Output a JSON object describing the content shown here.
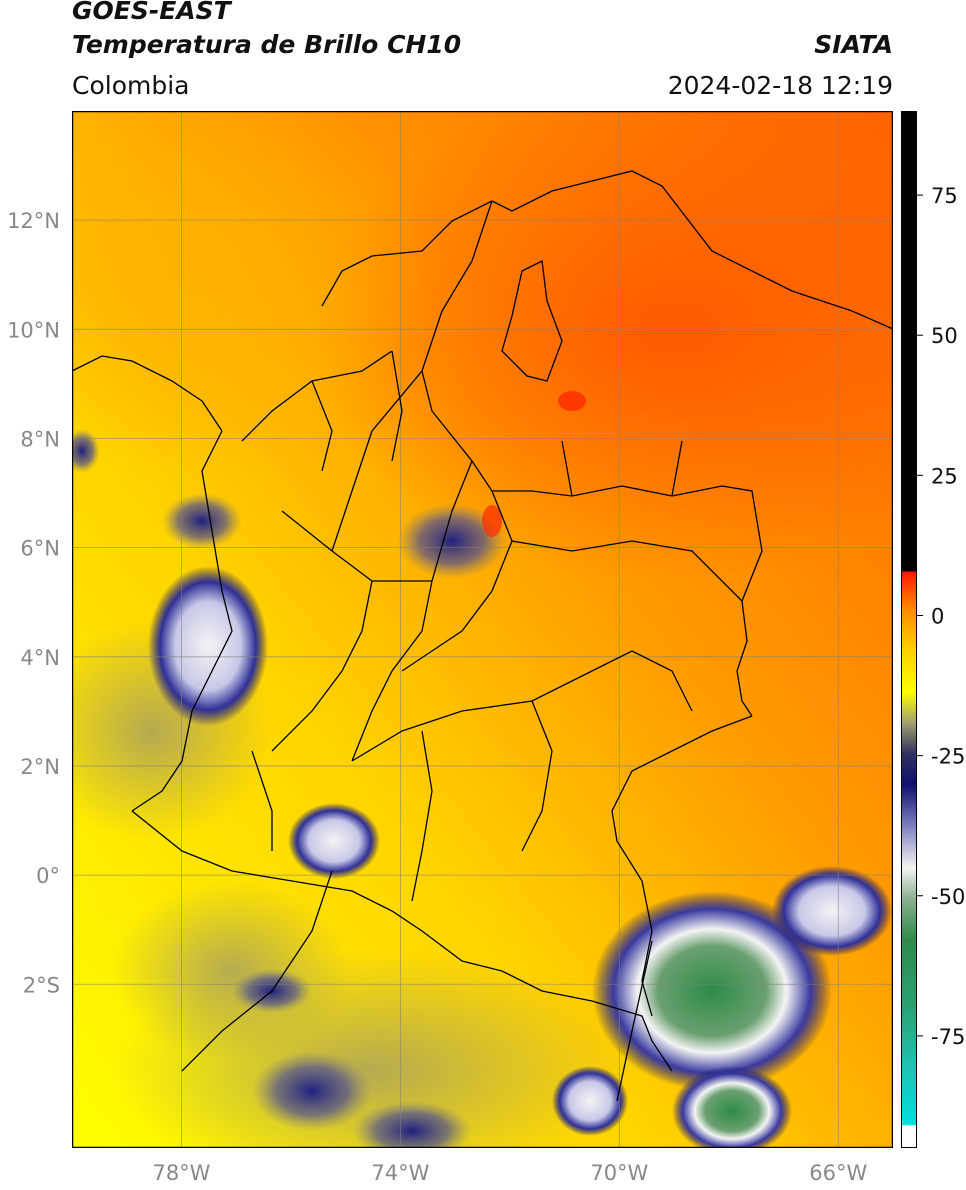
{
  "header": {
    "title_line1": "GOES-EAST",
    "title_line2": "Temperatura de Brillo CH10",
    "agency": "SIATA",
    "region": "Colombia",
    "datetime": "2024-02-18 12:19"
  },
  "map": {
    "lon_range": [
      -80,
      -65
    ],
    "lat_range": [
      -5,
      14
    ],
    "lat_ticks": [
      {
        "value": 12,
        "label": "12°N"
      },
      {
        "value": 10,
        "label": "10°N"
      },
      {
        "value": 8,
        "label": "8°N"
      },
      {
        "value": 6,
        "label": "6°N"
      },
      {
        "value": 4,
        "label": "4°N"
      },
      {
        "value": 2,
        "label": "2°N"
      },
      {
        "value": 0,
        "label": "0°"
      },
      {
        "value": -2,
        "label": "2°S"
      }
    ],
    "lon_ticks": [
      {
        "value": -78,
        "label": "78°W"
      },
      {
        "value": -74,
        "label": "74°W"
      },
      {
        "value": -70,
        "label": "70°W"
      },
      {
        "value": -66,
        "label": "66°W"
      }
    ],
    "grid": true
  },
  "colorbar": {
    "range": [
      -95,
      90
    ],
    "ticks": [
      {
        "value": 75,
        "label": "75"
      },
      {
        "value": 50,
        "label": "50"
      },
      {
        "value": 25,
        "label": "25"
      },
      {
        "value": 0,
        "label": "0"
      },
      {
        "value": -25,
        "label": "-25"
      },
      {
        "value": -50,
        "label": "-50"
      },
      {
        "value": -75,
        "label": "-75"
      }
    ]
  },
  "colors": {
    "warm_orange": "#ff6a00",
    "orange": "#ff9a00",
    "yellow": "#ffe000",
    "bright_yellow": "#ffff00",
    "olive": "#a8a060",
    "navy": "#101070",
    "white": "#f4f4f4",
    "green": "#2e8b4a",
    "teal": "#20b2a0",
    "cyan": "#00e0e0",
    "black": "#000000",
    "red": "#ff1a00"
  }
}
